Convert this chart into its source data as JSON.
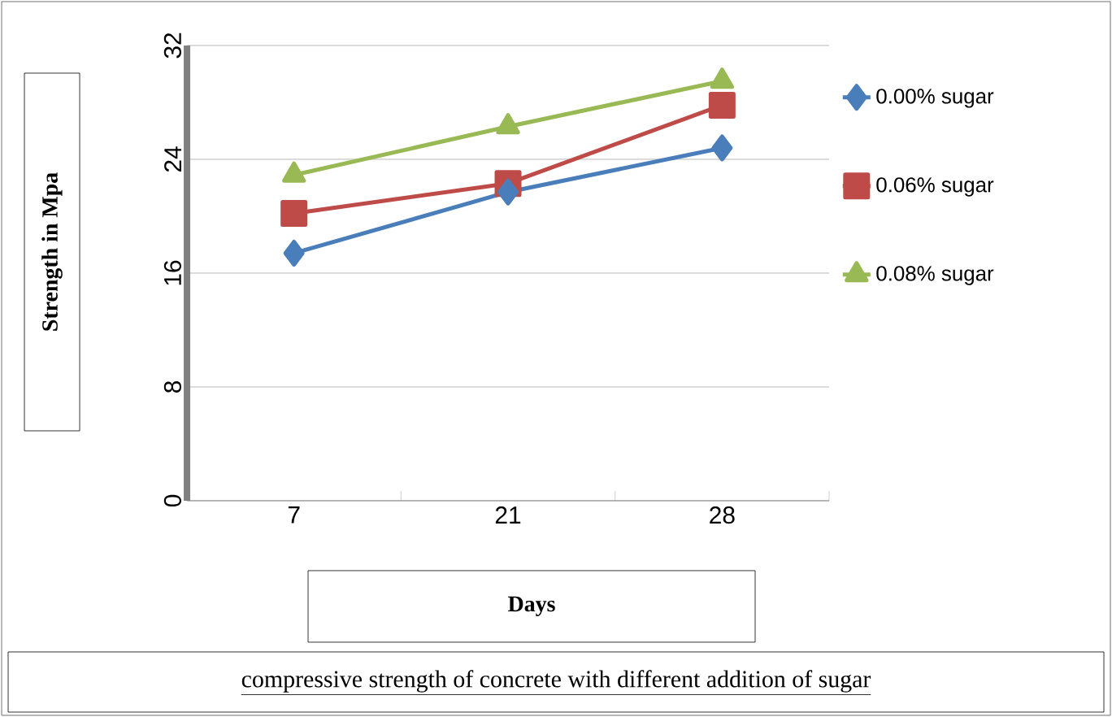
{
  "chart_data": {
    "type": "line",
    "xlabel": "Days",
    "ylabel": "Strength in Mpa",
    "categories": [
      "7",
      "21",
      "28"
    ],
    "series": [
      {
        "name": "0.00% sugar",
        "color": "#4a7ebb",
        "marker": "diamond",
        "values": [
          17.4,
          21.7,
          24.8
        ]
      },
      {
        "name": "0.06% sugar",
        "color": "#be4b48",
        "marker": "square",
        "values": [
          20.2,
          22.3,
          27.8
        ]
      },
      {
        "name": "0.08% sugar",
        "color": "#98b954",
        "marker": "triangle",
        "values": [
          22.9,
          26.3,
          29.5
        ]
      }
    ],
    "ylim": [
      0,
      32
    ],
    "yticks": [
      0,
      8,
      16,
      24,
      32
    ],
    "grid": "y",
    "legend": "right",
    "annotations": [
      "compressive strength of concrete with different addition of sugar"
    ]
  }
}
